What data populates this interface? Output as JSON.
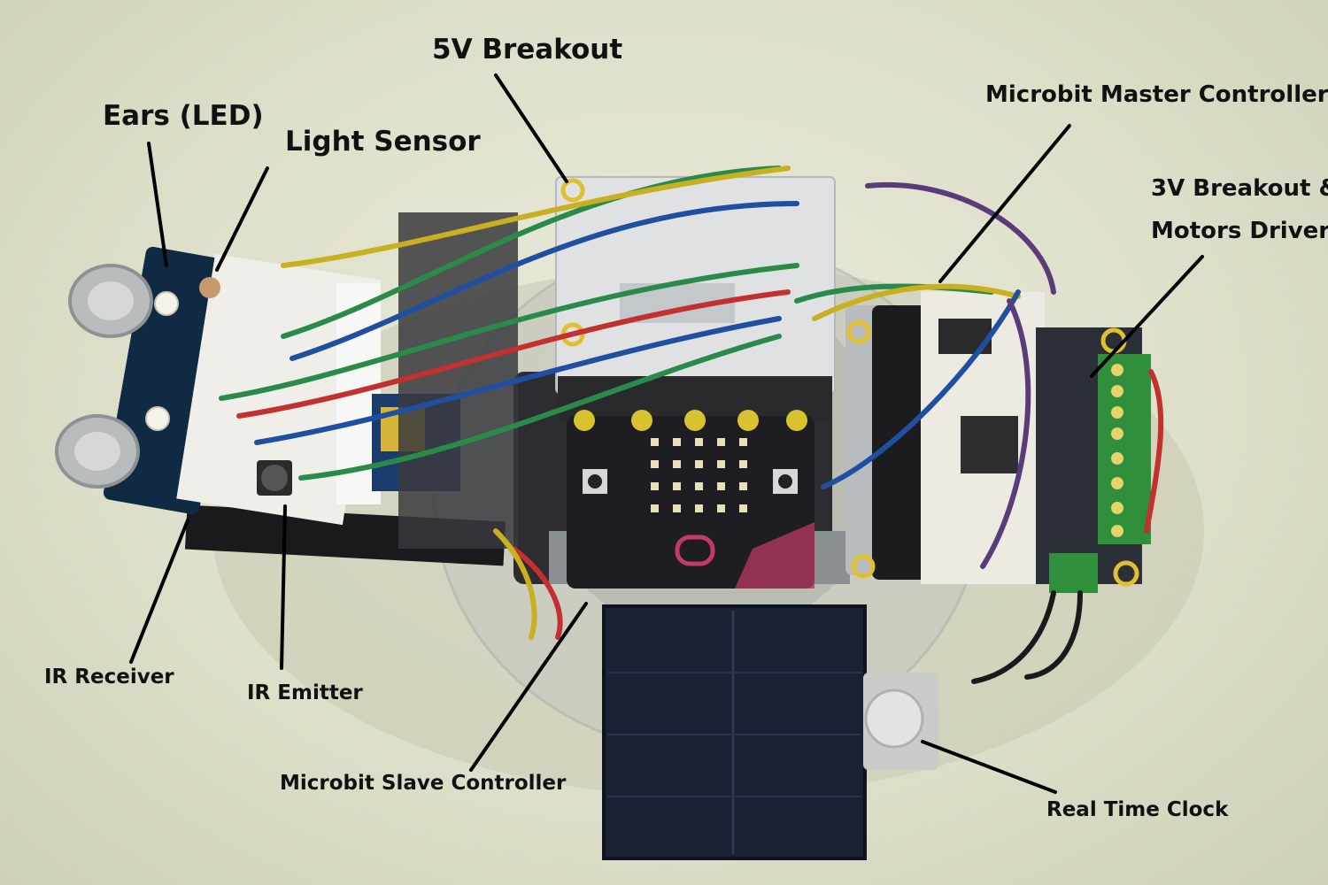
{
  "labels": {
    "five_v_breakout": "5V Breakout",
    "ears_led": "Ears (LED)",
    "light_sensor": "Light Sensor",
    "master_controller": "Microbit Master Controller",
    "breakout_3v_line1": "3V Breakout &",
    "breakout_3v_line2": "Motors Driver",
    "ir_receiver": "IR Receiver",
    "ir_emitter": "IR Emitter",
    "slave_controller": "Microbit Slave Controller",
    "real_time_clock": "Real Time Clock"
  },
  "colors": {
    "background": "#e4e5d1",
    "pcb_dark": "#1e1e22",
    "breakout_board": "#e2e4e6",
    "solar_panel": "#1b2133",
    "terminal_green": "#2f8f3a",
    "pointer_line": "#000000"
  }
}
